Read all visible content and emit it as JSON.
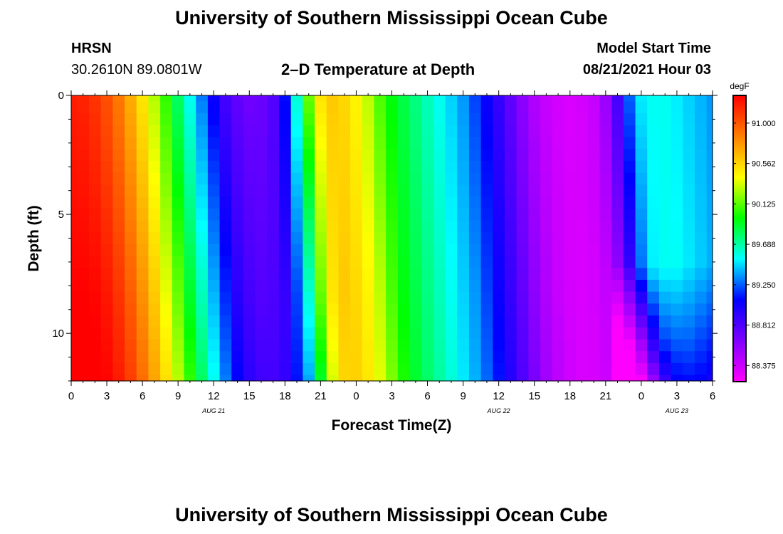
{
  "page": {
    "title_top": "University of Southern Mississippi Ocean Cube",
    "title_bottom": "University of Southern Mississippi Ocean Cube",
    "station_code": "HRSN",
    "station_coords": "30.2610N  89.0801W",
    "model_start_label": "Model Start Time",
    "model_start_value": "08/21/2021 Hour 03"
  },
  "chart_data": {
    "type": "heatmap",
    "title": "2–D Temperature at Depth",
    "xlabel": "Forecast Time(Z)",
    "ylabel": "Depth (ft)",
    "x_range_hours": [
      0,
      54
    ],
    "x_tick_labels": [
      "0",
      "3",
      "6",
      "9",
      "12",
      "15",
      "18",
      "21",
      "0",
      "3",
      "6",
      "9",
      "12",
      "15",
      "18",
      "21",
      "0",
      "3",
      "6"
    ],
    "x_tick_hours": [
      0,
      3,
      6,
      9,
      12,
      15,
      18,
      21,
      24,
      27,
      30,
      33,
      36,
      39,
      42,
      45,
      48,
      51,
      54
    ],
    "date_labels": [
      {
        "text": "AUG  21",
        "hour": 12
      },
      {
        "text": "AUG  22",
        "hour": 36
      },
      {
        "text": "AUG  23",
        "hour": 51
      }
    ],
    "ylim": [
      0,
      12
    ],
    "y_tick_labels": [
      "0",
      "5",
      "10"
    ],
    "y_tick_values": [
      0,
      5,
      10
    ],
    "colorbar": {
      "unit": "degF",
      "min": 88.2,
      "max": 91.3,
      "tick_labels": [
        "91.000",
        "90.562",
        "90.125",
        "89.688",
        "89.250",
        "88.812",
        "88.375"
      ],
      "tick_values": [
        91.0,
        90.5625,
        90.125,
        89.6875,
        89.25,
        88.8125,
        88.375
      ],
      "colors": [
        "#ff00ff",
        "#8000ff",
        "#0000ff",
        "#00ffff",
        "#00ff00",
        "#ffff00",
        "#ff8000",
        "#ff0000"
      ]
    },
    "time_hours": [
      0,
      1,
      2,
      3,
      4,
      5,
      6,
      7,
      8,
      9,
      10,
      11,
      12,
      13,
      14,
      15,
      16,
      17,
      18,
      19,
      20,
      21,
      22,
      23,
      24,
      25,
      26,
      27,
      28,
      29,
      30,
      31,
      32,
      33,
      34,
      35,
      36,
      37,
      38,
      39,
      40,
      41,
      42,
      43,
      44,
      45,
      46,
      47,
      48,
      49,
      50,
      51,
      52,
      53,
      54
    ],
    "surface_temp_degF": [
      91.2,
      91.18,
      91.12,
      91.02,
      90.88,
      90.7,
      90.5,
      90.28,
      90.05,
      89.8,
      89.55,
      89.3,
      89.05,
      88.85,
      88.75,
      88.7,
      88.72,
      88.8,
      89.1,
      89.6,
      90.15,
      90.5,
      90.6,
      90.55,
      90.45,
      90.3,
      90.1,
      89.95,
      89.85,
      89.75,
      89.65,
      89.55,
      89.45,
      89.35,
      89.2,
      89.05,
      88.9,
      88.75,
      88.6,
      88.48,
      88.4,
      88.35,
      88.33,
      88.35,
      88.4,
      88.55,
      88.85,
      89.25,
      89.5,
      89.55,
      89.55,
      89.5,
      89.45,
      89.4,
      89.35
    ],
    "depth_ft": [
      0,
      0.5,
      1,
      1.5,
      2,
      2.5,
      3,
      3.5,
      4,
      4.5,
      5,
      5.5,
      6,
      6.5,
      7,
      7.5,
      8,
      8.5,
      9,
      9.5,
      10,
      10.5,
      11,
      11.5,
      12
    ]
  }
}
